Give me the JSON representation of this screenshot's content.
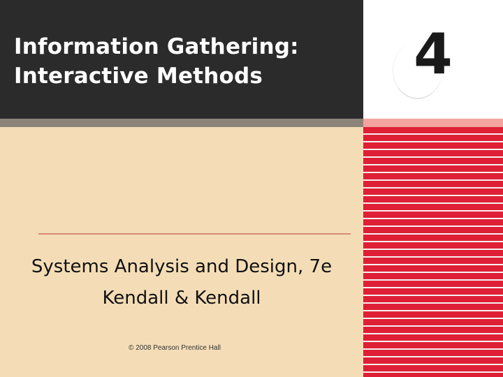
{
  "slide": {
    "title_line1": "Information Gathering:",
    "title_line2": "Interactive Methods",
    "chapter_number": "4",
    "subtitle_line1": "Systems Analysis and Design, 7e",
    "subtitle_line2": "Kendall & Kendall",
    "copyright": "© 2008 Pearson Prentice Hall"
  },
  "colors": {
    "title_band": "#2b2b2b",
    "background": "#f4ddb6",
    "stripe_red": "#de1f36",
    "stripe_gap": "#f6f0f0",
    "divider": "#d88a73"
  }
}
